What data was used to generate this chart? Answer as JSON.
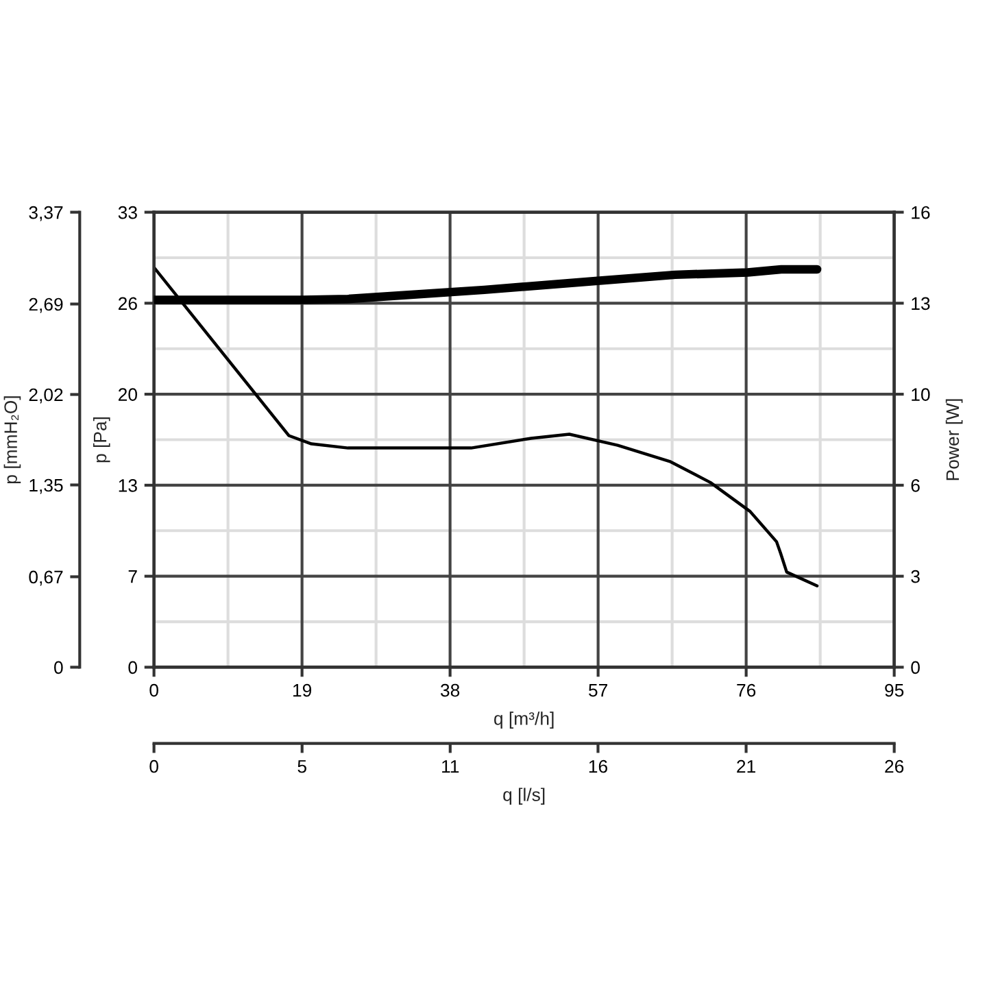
{
  "chart_data": {
    "type": "line",
    "xlabel": "q [m³/h]",
    "ylabel": "p [Pa]",
    "y2label": "Power [W]",
    "y3label": "p [mmH₂O]",
    "x2label": "q [l/s]",
    "xlim": [
      0,
      95
    ],
    "xticks": [
      0,
      19,
      38,
      57,
      76,
      95
    ],
    "ylim": [
      0,
      33
    ],
    "yticks": [
      0,
      {
        "value": 6.6,
        "label": "7"
      },
      {
        "value": 13.2,
        "label": "13"
      },
      {
        "value": 19.8,
        "label": "20"
      },
      {
        "value": 26.4,
        "label": "26"
      },
      33
    ],
    "y2lim": [
      0,
      16
    ],
    "y2ticks": [
      0,
      {
        "value": 3.2,
        "label": "3"
      },
      {
        "value": 6.4,
        "label": "6"
      },
      {
        "value": 9.6,
        "label": "10"
      },
      {
        "value": 12.8,
        "label": "13"
      },
      16
    ],
    "y3lim": [
      0,
      3.37
    ],
    "y3ticks": [
      0,
      {
        "value": 0.67,
        "label": "0,67"
      },
      {
        "value": 1.35,
        "label": "1,35"
      },
      {
        "value": 2.02,
        "label": "2,02"
      },
      {
        "value": 2.69,
        "label": "2,69"
      },
      {
        "value": 3.37,
        "label": "3,37"
      }
    ],
    "x2lim": [
      0,
      26.39
    ],
    "x2ticks": [
      0,
      {
        "value": 5.28,
        "label": "5"
      },
      {
        "value": 10.56,
        "label": "11"
      },
      {
        "value": 15.83,
        "label": "16"
      },
      {
        "value": 21.11,
        "label": "21"
      },
      {
        "value": 26.39,
        "label": "26"
      }
    ],
    "grid": true,
    "marker": "none",
    "line_style": "solid",
    "series": [
      {
        "color": "#000000",
        "x": [
          0,
          17.3,
          20.2,
          24.9,
          37.2,
          40.7,
          48.4,
          53.3,
          59.5,
          66.3,
          71.4,
          76.5,
          79.9,
          80.4,
          81.2,
          85.1
        ],
        "values": [
          29.0,
          16.8,
          16.2,
          15.9,
          15.9,
          15.9,
          16.6,
          16.9,
          16.1,
          14.9,
          13.4,
          11.3,
          9.1,
          8.3,
          6.9,
          5.9
        ]
      },
      {
        "color": "#000000",
        "axis": "y2",
        "x": [
          0,
          19,
          24.9,
          42.4,
          57.2,
          66.9,
          76.2,
          80.5,
          85.1
        ],
        "values": [
          12.92,
          12.92,
          12.95,
          13.27,
          13.59,
          13.8,
          13.88,
          13.99,
          13.99
        ]
      }
    ]
  }
}
